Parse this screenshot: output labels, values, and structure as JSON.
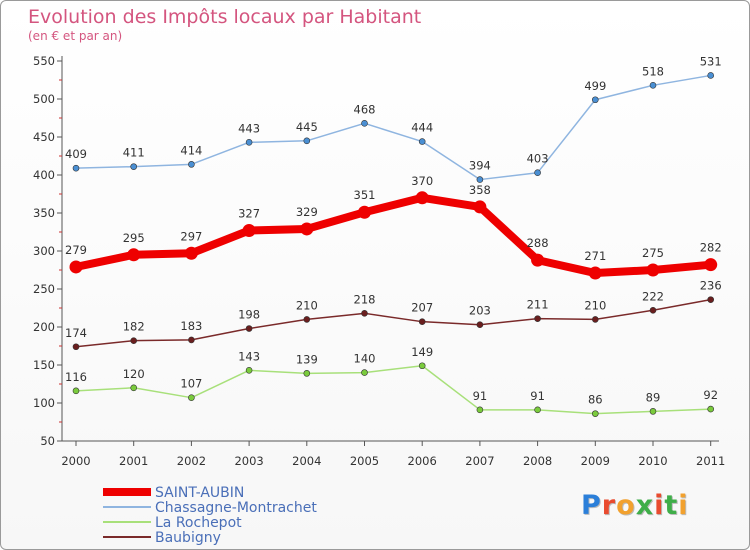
{
  "title": "Evolution des Impôts locaux par Habitant",
  "subtitle": "(en € et par an)",
  "brand": {
    "text": "Proxiti",
    "colors": [
      "#2b7fd9",
      "#e94b2f",
      "#f2a12e",
      "#3fae49",
      "#e94b2f",
      "#3fae49",
      "#f2a12e"
    ]
  },
  "chart_data": {
    "type": "line",
    "categories": [
      "2000",
      "2001",
      "2002",
      "2003",
      "2004",
      "2005",
      "2006",
      "2007",
      "2008",
      "2009",
      "2010",
      "2011"
    ],
    "ylim": [
      50,
      550
    ],
    "yticks": [
      50,
      100,
      150,
      200,
      250,
      300,
      350,
      400,
      450,
      500,
      550
    ],
    "grid": false,
    "legend_position": "bottom-left",
    "series": [
      {
        "name": "SAINT-AUBIN",
        "color": "#ee0000",
        "point_color": "#ee0000",
        "emphasis": true,
        "values": [
          279,
          295,
          297,
          327,
          329,
          351,
          370,
          358,
          288,
          271,
          275,
          282
        ]
      },
      {
        "name": "Chassagne-Montrachet",
        "color": "#8fb5e0",
        "point_color": "#4a8fd3",
        "emphasis": false,
        "values": [
          409,
          411,
          414,
          443,
          445,
          468,
          444,
          394,
          403,
          499,
          518,
          531
        ]
      },
      {
        "name": "La Rochepot",
        "color": "#a8e07a",
        "point_color": "#7acb3c",
        "emphasis": false,
        "values": [
          116,
          120,
          107,
          143,
          139,
          140,
          149,
          91,
          91,
          86,
          89,
          92
        ]
      },
      {
        "name": "Baubigny",
        "color": "#7a2a2a",
        "point_color": "#6a1e1e",
        "emphasis": false,
        "values": [
          174,
          182,
          183,
          198,
          210,
          218,
          207,
          203,
          211,
          210,
          222,
          236
        ]
      }
    ]
  }
}
